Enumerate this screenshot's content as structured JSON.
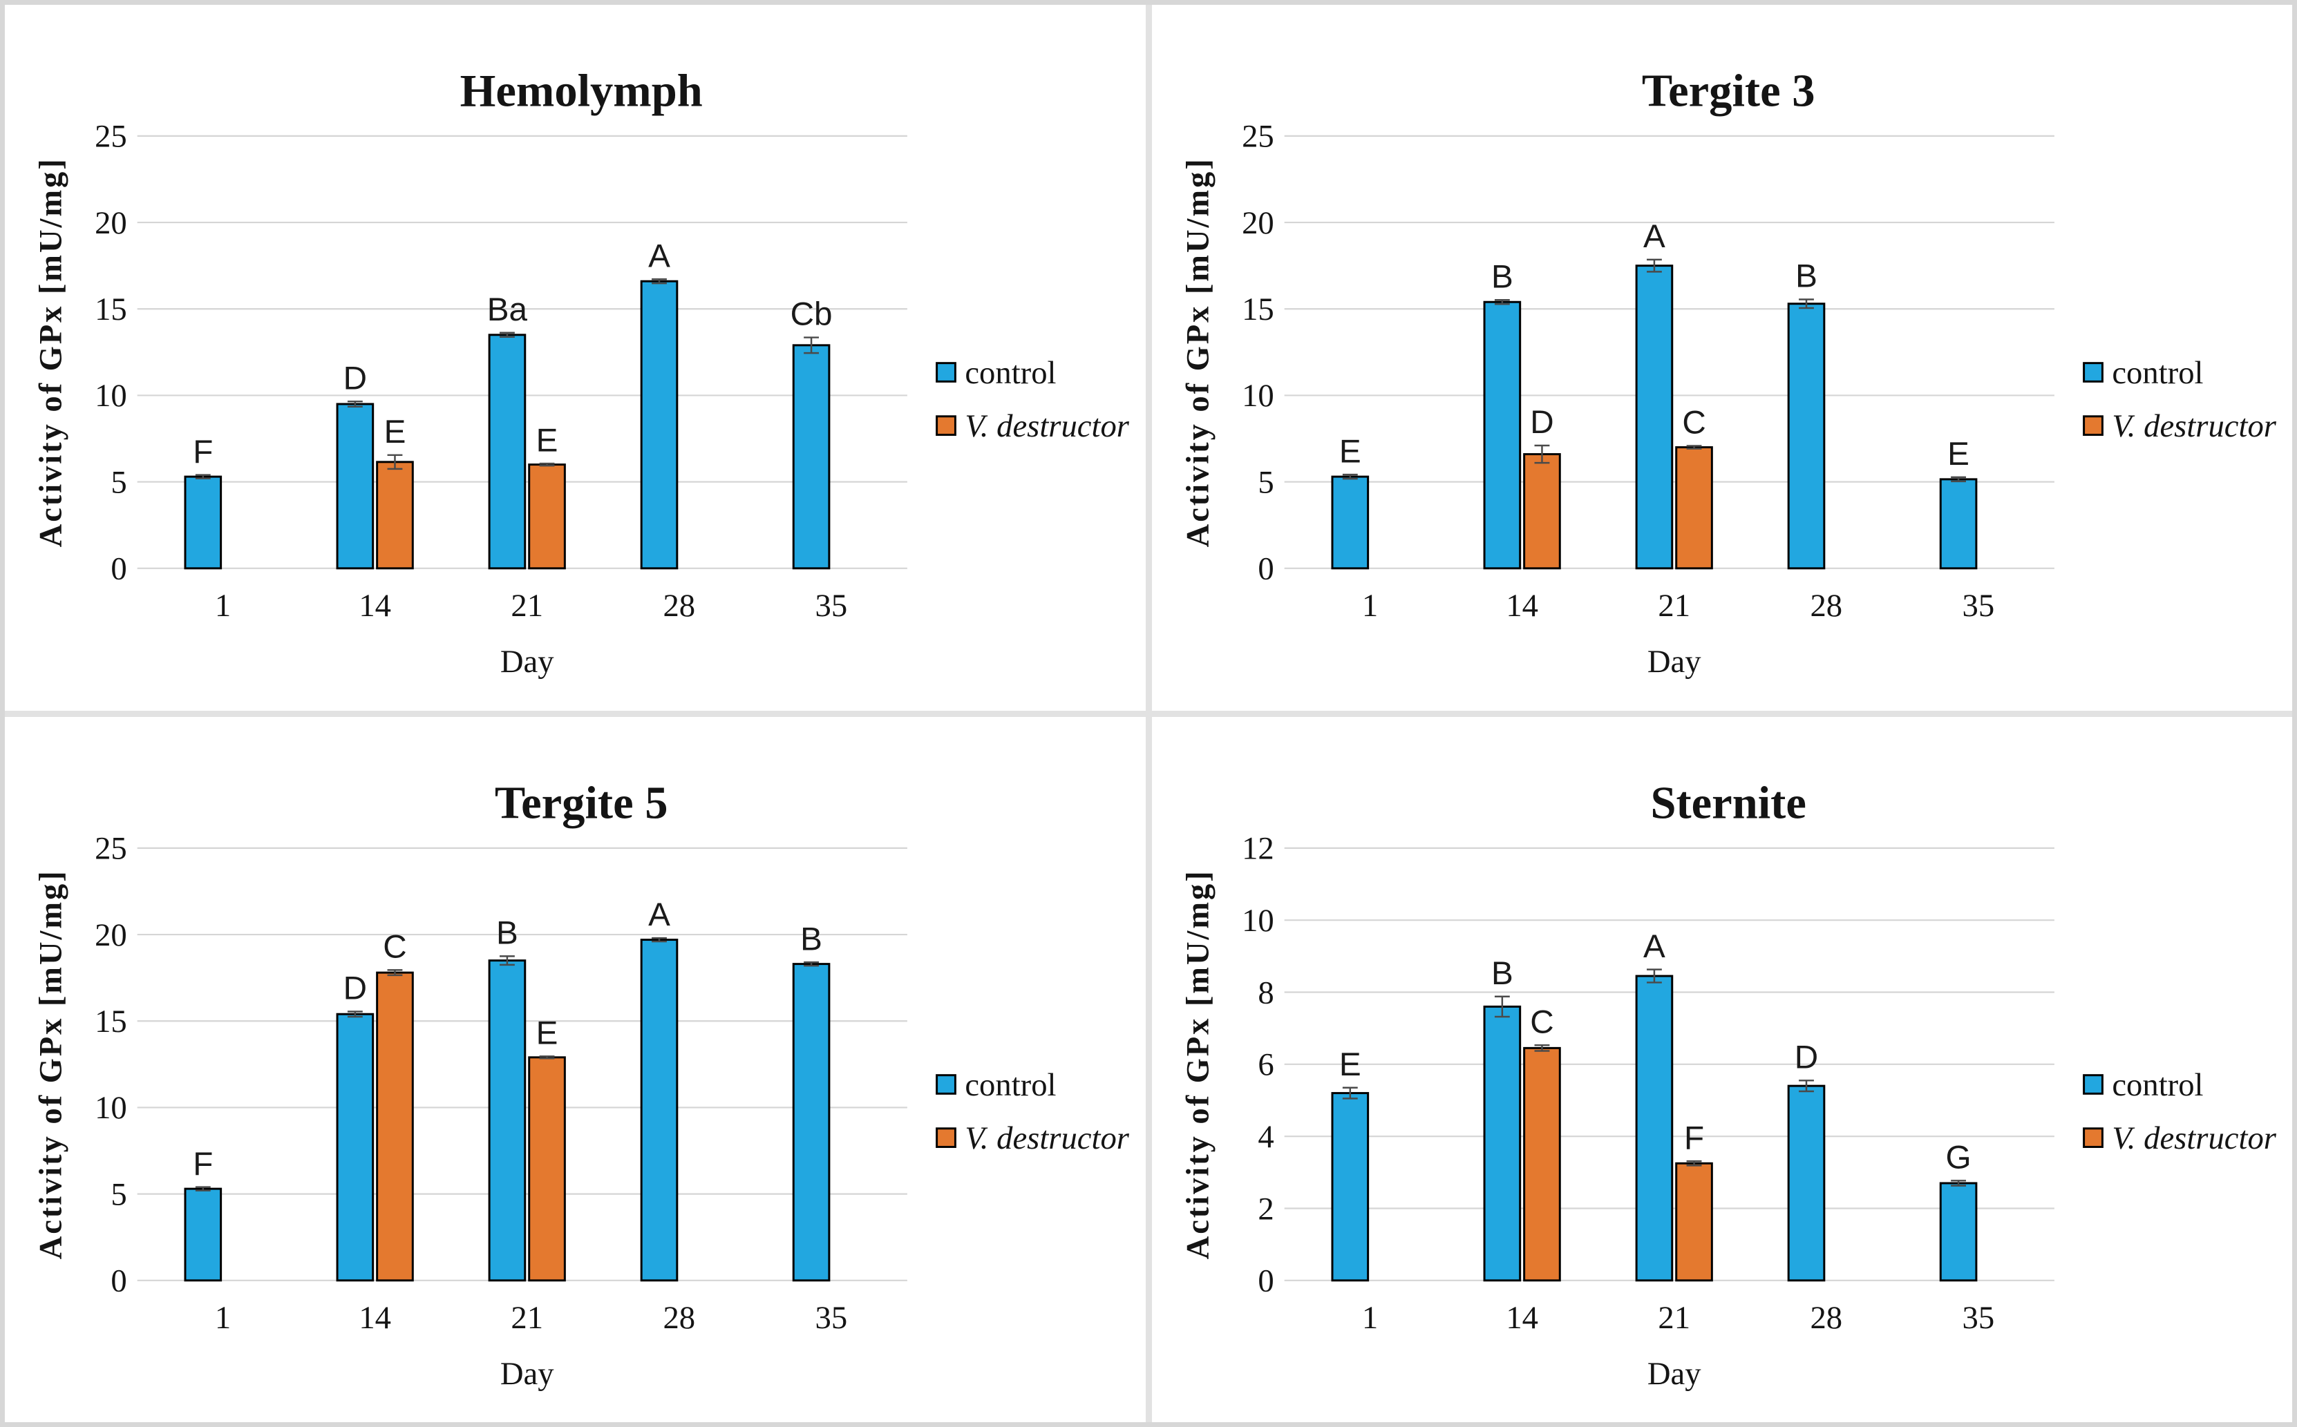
{
  "figure": {
    "panel_titles": [
      "Hemolymph",
      "Tergite 3",
      "Tergite 5",
      "Sternite"
    ],
    "shared_x_label": "Day",
    "shared_y_label": "Activity of GPx [mU/mg]"
  },
  "styles": {
    "control_color": "#22A7E0",
    "varroa_color": "#E4792F",
    "bar_outline_color": "#000000",
    "gridline_color": "#D5D5D5",
    "error_bar_color": "#4A4A4A",
    "text_color": "#141414",
    "panel_background": "#FFFFFF",
    "divider_color": "#E2E2E2"
  },
  "chart_data": [
    {
      "type": "bar",
      "title": "Hemolymph",
      "xlabel": "Day",
      "ylabel": "Activity of GPx [mU/mg]",
      "categories": [
        "1",
        "14",
        "21",
        "28",
        "35"
      ],
      "ylim": [
        0,
        25
      ],
      "yticks": [
        0,
        5,
        10,
        15,
        20,
        25
      ],
      "grid": true,
      "legend_position": "right",
      "series": [
        {
          "name": "control",
          "color_key": "control_color",
          "italic": false,
          "values": [
            5.3,
            9.5,
            13.5,
            16.6,
            12.9
          ],
          "errors": [
            0.1,
            0.15,
            0.12,
            0.12,
            0.45
          ],
          "point_labels": [
            "F",
            "D",
            "Ba",
            "A",
            "Cb"
          ]
        },
        {
          "name": "V. destructor",
          "color_key": "varroa_color",
          "italic": true,
          "values": [
            null,
            6.15,
            6.0,
            null,
            null
          ],
          "errors": [
            null,
            0.4,
            0.06,
            null,
            null
          ],
          "point_labels": [
            null,
            "E",
            "E",
            null,
            null
          ]
        }
      ]
    },
    {
      "type": "bar",
      "title": "Tergite 3",
      "xlabel": "Day",
      "ylabel": "Activity of GPx [mU/mg]",
      "categories": [
        "1",
        "14",
        "21",
        "28",
        "35"
      ],
      "ylim": [
        0,
        25
      ],
      "yticks": [
        0,
        5,
        10,
        15,
        20,
        25
      ],
      "grid": true,
      "legend_position": "right",
      "series": [
        {
          "name": "control",
          "color_key": "control_color",
          "italic": false,
          "values": [
            5.3,
            15.4,
            17.5,
            15.3,
            5.15
          ],
          "errors": [
            0.12,
            0.12,
            0.35,
            0.25,
            0.12
          ],
          "point_labels": [
            "E",
            "B",
            "A",
            "B",
            "E"
          ]
        },
        {
          "name": "V. destructor",
          "color_key": "varroa_color",
          "italic": true,
          "values": [
            null,
            6.6,
            7.0,
            null,
            null
          ],
          "errors": [
            null,
            0.5,
            0.08,
            null,
            null
          ],
          "point_labels": [
            null,
            "D",
            "C",
            null,
            null
          ]
        }
      ]
    },
    {
      "type": "bar",
      "title": "Tergite 5",
      "xlabel": "Day",
      "ylabel": "Activity of GPx [mU/mg]",
      "categories": [
        "1",
        "14",
        "21",
        "28",
        "35"
      ],
      "ylim": [
        0,
        25
      ],
      "yticks": [
        0,
        5,
        10,
        15,
        20,
        25
      ],
      "grid": true,
      "legend_position": "right",
      "series": [
        {
          "name": "control",
          "color_key": "control_color",
          "italic": false,
          "values": [
            5.3,
            15.4,
            18.5,
            19.7,
            18.3
          ],
          "errors": [
            0.1,
            0.15,
            0.25,
            0.1,
            0.1
          ],
          "point_labels": [
            "F",
            "D",
            "B",
            "A",
            "B"
          ]
        },
        {
          "name": "V. destructor",
          "color_key": "varroa_color",
          "italic": true,
          "values": [
            null,
            17.8,
            12.9,
            null,
            null
          ],
          "errors": [
            null,
            0.15,
            0.06,
            null,
            null
          ],
          "point_labels": [
            null,
            "C",
            "E",
            null,
            null
          ]
        }
      ]
    },
    {
      "type": "bar",
      "title": "Sternite",
      "xlabel": "Day",
      "ylabel": "Activity of GPx [mU/mg]",
      "categories": [
        "1",
        "14",
        "21",
        "28",
        "35"
      ],
      "ylim": [
        0,
        12
      ],
      "yticks": [
        0,
        2,
        4,
        6,
        8,
        10,
        12
      ],
      "grid": true,
      "legend_position": "right",
      "series": [
        {
          "name": "control",
          "color_key": "control_color",
          "italic": false,
          "values": [
            5.2,
            7.6,
            8.45,
            5.4,
            2.7
          ],
          "errors": [
            0.15,
            0.28,
            0.18,
            0.15,
            0.07
          ],
          "point_labels": [
            "E",
            "B",
            "A",
            "D",
            "G"
          ]
        },
        {
          "name": "V. destructor",
          "color_key": "varroa_color",
          "italic": true,
          "values": [
            null,
            6.45,
            3.25,
            null,
            null
          ],
          "errors": [
            null,
            0.08,
            0.06,
            null,
            null
          ],
          "point_labels": [
            null,
            "C",
            "F",
            null,
            null
          ]
        }
      ]
    }
  ]
}
